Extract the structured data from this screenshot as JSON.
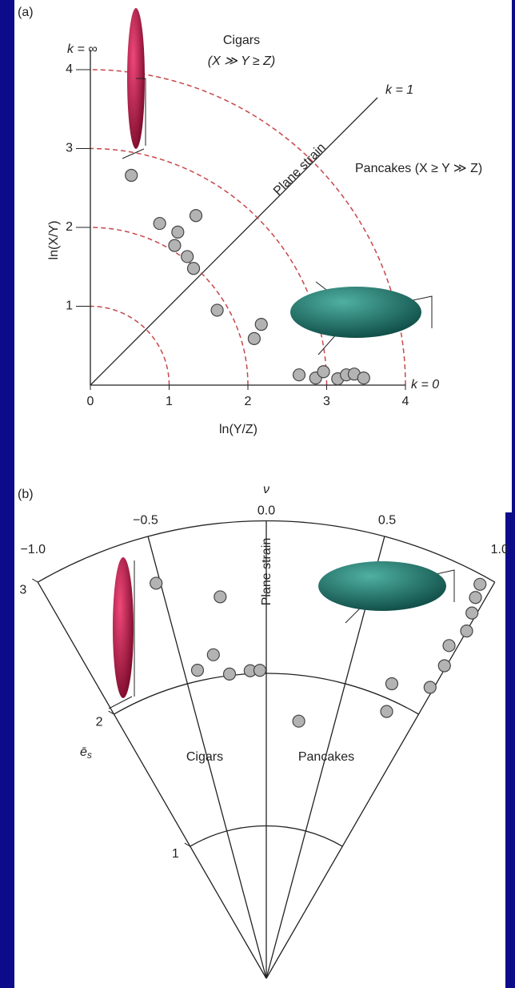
{
  "chart_data": [
    {
      "type": "flinn",
      "panel_label": "(a)",
      "xlabel": "ln(Y/Z)",
      "ylabel": "ln(X/Y)",
      "k_inf_label": "k = ∞",
      "k_one_label": "k = 1",
      "k_zero_label": "k = 0",
      "plane_strain_label": "Plane strain",
      "cigars_label": "Cigars",
      "cigars_condition": "(X ≫ Y ≥ Z)",
      "pancakes_label": "Pancakes (X ≥ Y ≫ Z)",
      "xlim": [
        0,
        4
      ],
      "ylim": [
        0,
        4.25
      ],
      "xticks": [
        0,
        1,
        2,
        3,
        4
      ],
      "yticks": [
        1,
        2,
        3,
        4
      ],
      "contours": [
        1,
        2,
        3,
        4
      ],
      "contour_color": "#c8474a",
      "point_color": "#b3b3b3",
      "x": [
        0.52,
        0.88,
        1.11,
        1.34,
        1.07,
        1.23,
        1.31,
        1.61,
        2.17,
        2.08,
        2.65,
        2.86,
        2.96,
        3.14,
        3.25,
        3.35,
        3.47
      ],
      "values": [
        2.66,
        2.05,
        1.94,
        2.15,
        1.77,
        1.63,
        1.48,
        0.95,
        0.77,
        0.59,
        0.13,
        0.09,
        0.17,
        0.08,
        0.13,
        0.14,
        0.09
      ]
    },
    {
      "type": "hsu-nadai",
      "panel_label": "(b)",
      "xlabel": "ν",
      "ylabel": "ē",
      "ylabel_sub": "s",
      "plane_strain_label": "Plane strain",
      "cigars_label": "Cigars",
      "pancakes_label": "Pancakes",
      "xlim": [
        -1,
        1
      ],
      "ylim": [
        0,
        3
      ],
      "xticks": [
        {
          "value": -1,
          "label": "−1.0"
        },
        {
          "value": -0.5,
          "label": "−0.5"
        },
        {
          "value": 0,
          "label": "0.0"
        },
        {
          "value": 0.5,
          "label": "0.5"
        },
        {
          "value": 1,
          "label": "1.0"
        }
      ],
      "yticks": [
        1,
        2,
        3
      ],
      "point_color": "#b3b3b3",
      "x": [
        -0.52,
        -0.23,
        -0.31,
        -0.42,
        -0.23,
        -0.1,
        -0.04,
        0.24,
        0.81,
        0.77,
        0.98,
        0.99,
        0.96,
        1.0,
        0.98,
        0.96,
        0.95
      ],
      "values": [
        2.69,
        2.52,
        2.15,
        2.07,
        2.01,
        2.02,
        2.02,
        1.7,
        1.92,
        2.1,
        2.19,
        2.36,
        2.49,
        2.63,
        2.75,
        2.85,
        2.94
      ]
    }
  ]
}
